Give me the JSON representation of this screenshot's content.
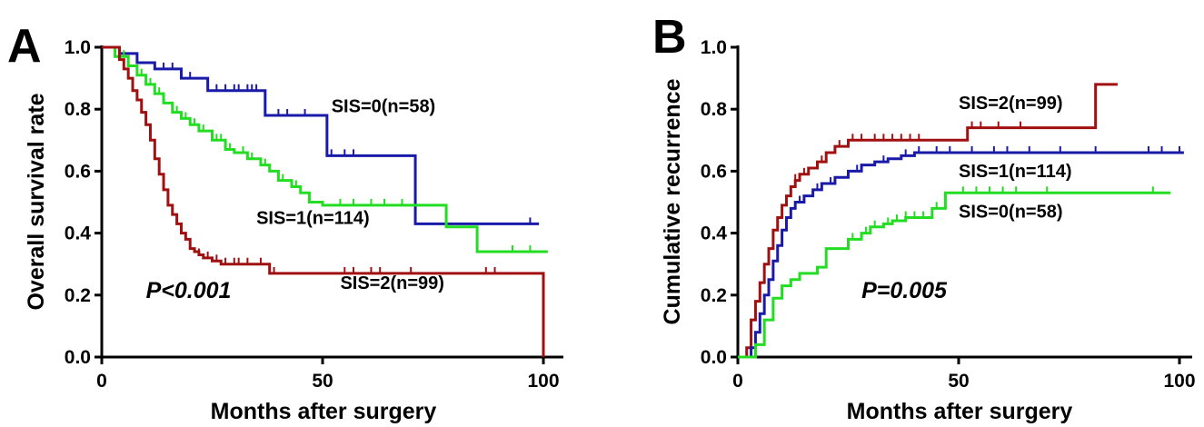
{
  "chart_data": [
    {
      "type": "line",
      "panel": "A",
      "xlabel": "Months after surgery",
      "ylabel": "Overall survival rate",
      "xlim": [
        0,
        100
      ],
      "ylim": [
        0,
        1.0
      ],
      "xticks": [
        "0",
        "50",
        "100"
      ],
      "yticks": [
        "0.0",
        "0.2",
        "0.4",
        "0.6",
        "0.8",
        "1.0"
      ],
      "pvalue": "P<0.001",
      "series": [
        {
          "name": "SIS=0(n=58)",
          "color": "#1a1aa8",
          "x": [
            0,
            4,
            8,
            12,
            18,
            24,
            37,
            49,
            51,
            58,
            71,
            99
          ],
          "y": [
            1.0,
            0.98,
            0.95,
            0.93,
            0.9,
            0.86,
            0.78,
            0.78,
            0.65,
            0.65,
            0.43,
            0.43
          ],
          "censor_x": [
            14,
            16,
            20,
            26,
            28,
            30,
            31,
            33,
            34,
            35,
            40,
            42,
            46,
            52,
            55,
            57,
            97
          ]
        },
        {
          "name": "SIS=1(n=114)",
          "color": "#22dd22",
          "x": [
            0,
            3,
            6,
            8,
            10,
            12,
            14,
            16,
            18,
            20,
            22,
            25,
            28,
            30,
            33,
            36,
            38,
            40,
            43,
            45,
            47,
            50,
            53,
            60,
            65,
            71,
            78,
            85,
            101
          ],
          "y": [
            1.0,
            0.97,
            0.94,
            0.91,
            0.88,
            0.85,
            0.82,
            0.79,
            0.77,
            0.75,
            0.73,
            0.7,
            0.67,
            0.66,
            0.64,
            0.62,
            0.6,
            0.57,
            0.55,
            0.53,
            0.5,
            0.49,
            0.49,
            0.49,
            0.49,
            0.49,
            0.42,
            0.34,
            0.34
          ],
          "censor_x": [
            3,
            5,
            9,
            11,
            13,
            17,
            19,
            21,
            23,
            26,
            27,
            29,
            32,
            34,
            37,
            41,
            44,
            47,
            54,
            57,
            61,
            64,
            68,
            93,
            97
          ]
        },
        {
          "name": "SIS=2(n=99)",
          "color": "#a01010",
          "x": [
            0,
            4,
            5,
            6,
            7,
            8,
            9,
            10,
            11,
            12,
            13,
            14,
            15,
            16,
            17,
            18,
            19,
            20,
            21,
            22,
            23,
            25,
            27,
            29,
            38,
            98,
            100
          ],
          "y": [
            1.0,
            0.96,
            0.93,
            0.9,
            0.86,
            0.83,
            0.79,
            0.75,
            0.7,
            0.64,
            0.59,
            0.54,
            0.49,
            0.46,
            0.43,
            0.4,
            0.38,
            0.35,
            0.34,
            0.33,
            0.32,
            0.31,
            0.3,
            0.3,
            0.27,
            0.27,
            0.0
          ],
          "censor_x": [
            22,
            24,
            26,
            28,
            30,
            31,
            33,
            36,
            39,
            55,
            57,
            61,
            63,
            70,
            87,
            89
          ]
        }
      ],
      "labels": [
        {
          "text": "SIS=0(n=58)",
          "x": 52,
          "y": 0.79
        },
        {
          "text": "SIS=1(n=114)",
          "x": 35,
          "y": 0.43
        },
        {
          "text": "SIS=2(n=99)",
          "x": 54,
          "y": 0.22
        }
      ],
      "pvalue_pos": {
        "x": 10,
        "y": 0.19
      }
    },
    {
      "type": "line",
      "panel": "B",
      "xlabel": "Months after surgery",
      "ylabel": "Cumulative recurrence",
      "xlim": [
        0,
        100
      ],
      "ylim": [
        0,
        1.0
      ],
      "xticks": [
        "0",
        "50",
        "100"
      ],
      "yticks": [
        "0.0",
        "0.2",
        "0.4",
        "0.6",
        "0.8",
        "1.0"
      ],
      "pvalue": "P=0.005",
      "series": [
        {
          "name": "SIS=2(n=99)",
          "color": "#a01010",
          "x": [
            0,
            2,
            3,
            4,
            5,
            6,
            7,
            8,
            9,
            10,
            11,
            12,
            13,
            14,
            16,
            18,
            20,
            22,
            25,
            30,
            40,
            52,
            70,
            81,
            86
          ],
          "y": [
            0.0,
            0.03,
            0.12,
            0.18,
            0.24,
            0.3,
            0.35,
            0.41,
            0.45,
            0.49,
            0.52,
            0.55,
            0.57,
            0.59,
            0.61,
            0.63,
            0.66,
            0.68,
            0.7,
            0.7,
            0.7,
            0.74,
            0.74,
            0.88,
            0.88
          ],
          "censor_x": [
            13,
            15,
            19,
            23,
            26,
            28,
            31,
            33,
            35,
            37,
            39,
            41,
            53,
            55,
            59,
            64
          ]
        },
        {
          "name": "SIS=1(n=114)",
          "color": "#1a1aa8",
          "x": [
            0,
            3,
            4,
            5,
            6,
            7,
            8,
            9,
            10,
            11,
            12,
            13,
            15,
            17,
            19,
            22,
            25,
            28,
            31,
            34,
            37,
            40,
            44,
            50,
            60,
            80,
            101
          ],
          "y": [
            0.0,
            0.03,
            0.08,
            0.14,
            0.2,
            0.25,
            0.31,
            0.36,
            0.41,
            0.45,
            0.48,
            0.5,
            0.52,
            0.54,
            0.56,
            0.58,
            0.6,
            0.62,
            0.63,
            0.64,
            0.65,
            0.66,
            0.66,
            0.66,
            0.66,
            0.66,
            0.66
          ],
          "censor_x": [
            14,
            18,
            21,
            27,
            33,
            38,
            41,
            45,
            48,
            53,
            58,
            61,
            66,
            73,
            81,
            93,
            96,
            100
          ]
        },
        {
          "name": "SIS=0(n=58)",
          "color": "#22dd22",
          "x": [
            0,
            4,
            6,
            8,
            10,
            12,
            14,
            18,
            20,
            25,
            28,
            30,
            33,
            35,
            38,
            44,
            47,
            70,
            98
          ],
          "y": [
            0.0,
            0.04,
            0.12,
            0.19,
            0.23,
            0.25,
            0.27,
            0.29,
            0.35,
            0.38,
            0.4,
            0.42,
            0.43,
            0.44,
            0.45,
            0.48,
            0.53,
            0.53,
            0.53
          ],
          "censor_x": [
            26,
            29,
            31,
            34,
            36,
            38,
            40,
            42,
            45,
            51,
            54,
            57,
            60,
            63,
            70,
            94
          ]
        }
      ],
      "labels": [
        {
          "text": "SIS=2(n=99)",
          "x": 50,
          "y": 0.8
        },
        {
          "text": "SIS=1(n=114)",
          "x": 50,
          "y": 0.58
        },
        {
          "text": "SIS=0(n=58)",
          "x": 50,
          "y": 0.45
        }
      ],
      "pvalue_pos": {
        "x": 28,
        "y": 0.19
      }
    }
  ]
}
